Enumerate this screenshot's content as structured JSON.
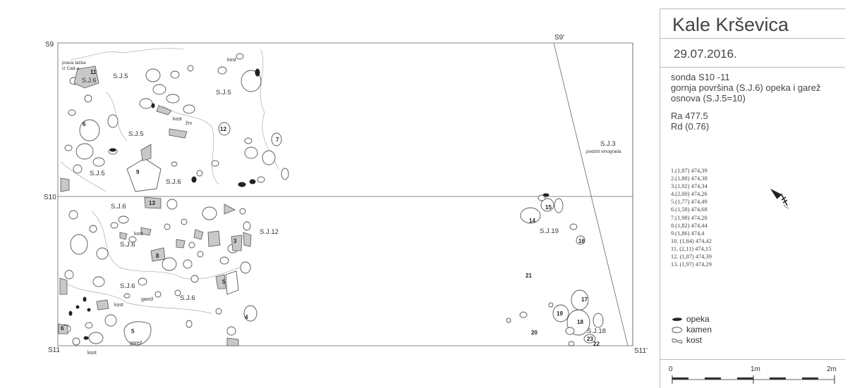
{
  "plan": {
    "corners": {
      "s9": "S9",
      "s9p": "S9'",
      "s10": "S10",
      "s11": "S11",
      "s11p": "S11'"
    },
    "labels": {
      "prava": "prava tačka",
      "iz_cad": "iz Cad-a",
      "sj6_a": "S.J.6",
      "sj5_a": "S.J.5",
      "sj5_b": "S.J.5",
      "sj5_c": "S.J.5",
      "sj5_d": "S.J.5",
      "sj6_b": "S.J.6",
      "sj6_c": "S.J.6",
      "sj6_d": "S.J.6",
      "sj6_e": "S.J.6",
      "sj6_f": "S.J.6",
      "sj12": "S.J.12",
      "sj3": "S.J.3",
      "podzid": "podzid vinograda",
      "sj19": "S.J.19",
      "sj18": "S.J.18",
      "kost_1": "kost",
      "kost_2": "kost",
      "kost_3": "kost",
      "kost_4": "kost",
      "kost_5": "kost",
      "zrv": "žrv",
      "garez_1": "garež",
      "garez_2": "garež"
    },
    "numbers": {
      "n11": "11",
      "n6a": "6",
      "n12": "12",
      "n7": "7",
      "n9": "9",
      "n13": "13",
      "n8": "8",
      "n3": "3",
      "n5a": "5",
      "n4": "4",
      "n5b": "5",
      "n6b": "6",
      "n15": "15",
      "n14": "14",
      "n16": "16",
      "n21": "21",
      "n17": "17",
      "n19": "19",
      "n18": "18",
      "n20": "20",
      "n23": "23",
      "n22": "22"
    }
  },
  "sidebar": {
    "title": "Kale Krševica",
    "date": "29.07.2016.",
    "desc_1": "sonda S10 -11",
    "desc_2": "gornja površina (S.J.6) opeka i garež",
    "desc_3": "osnova (S.J.5=10)",
    "ra": "Ra 477.5",
    "rd": "Rd (0.76)",
    "points": [
      "1.(1,87) 474,39",
      "2.(1,88) 474,38",
      "3.(1,92) 474,34",
      "4.(2,00) 474,26",
      "5.(1,77) 474,49",
      "6.(1,58) 474,68",
      "7.(1,98) 474,28",
      "8.(1,82) 474,44",
      "9.(1,86) 474,4",
      "10. (1,84) 474,42",
      "11. (2,11) 474,15",
      "12. (1,87) 474,39",
      "13. (1,97) 474,29"
    ],
    "legend": {
      "opeka": "opeka",
      "kamen": "kamen",
      "kost": "kost"
    },
    "scale": {
      "s0": "0",
      "s1": "1m",
      "s2": "2m"
    }
  },
  "colors": {
    "line": "#555555",
    "stone_fill": "#ffffff",
    "gray_fill": "#c8c8c8",
    "brick_fill": "#222222",
    "trace": "#a8a8a8"
  }
}
